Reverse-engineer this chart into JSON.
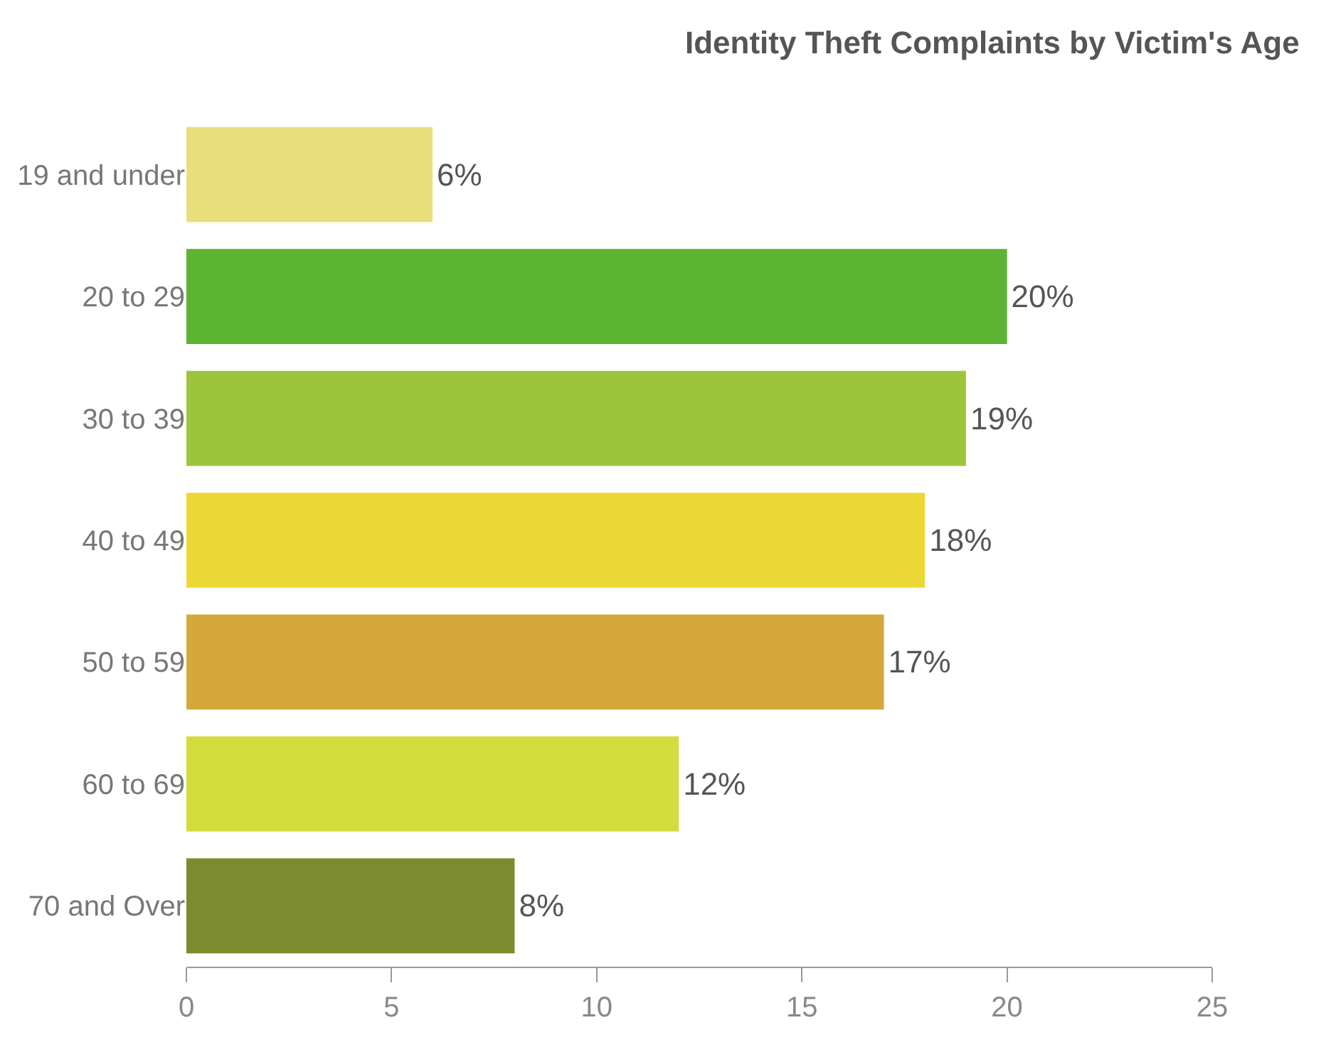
{
  "chart_data": {
    "type": "bar",
    "orientation": "horizontal",
    "title": "Identity Theft Complaints by Victim's Age",
    "categories": [
      "19 and under",
      "20 to 29",
      "30 to 39",
      "40 to 49",
      "50 to 59",
      "60 to 69",
      "70 and Over"
    ],
    "values": [
      6,
      20,
      19,
      18,
      17,
      12,
      8
    ],
    "colors": [
      "#e8df7c",
      "#5db332",
      "#9cc43c",
      "#ecd835",
      "#d5a83c",
      "#d2dc3c",
      "#7d8b2f"
    ],
    "value_labels": [
      "6%",
      "20%",
      "19%",
      "18%",
      "17%",
      "12%",
      "8%"
    ],
    "xlim": [
      0,
      25
    ],
    "xticks": [
      0,
      5,
      10,
      15,
      20,
      25
    ]
  }
}
